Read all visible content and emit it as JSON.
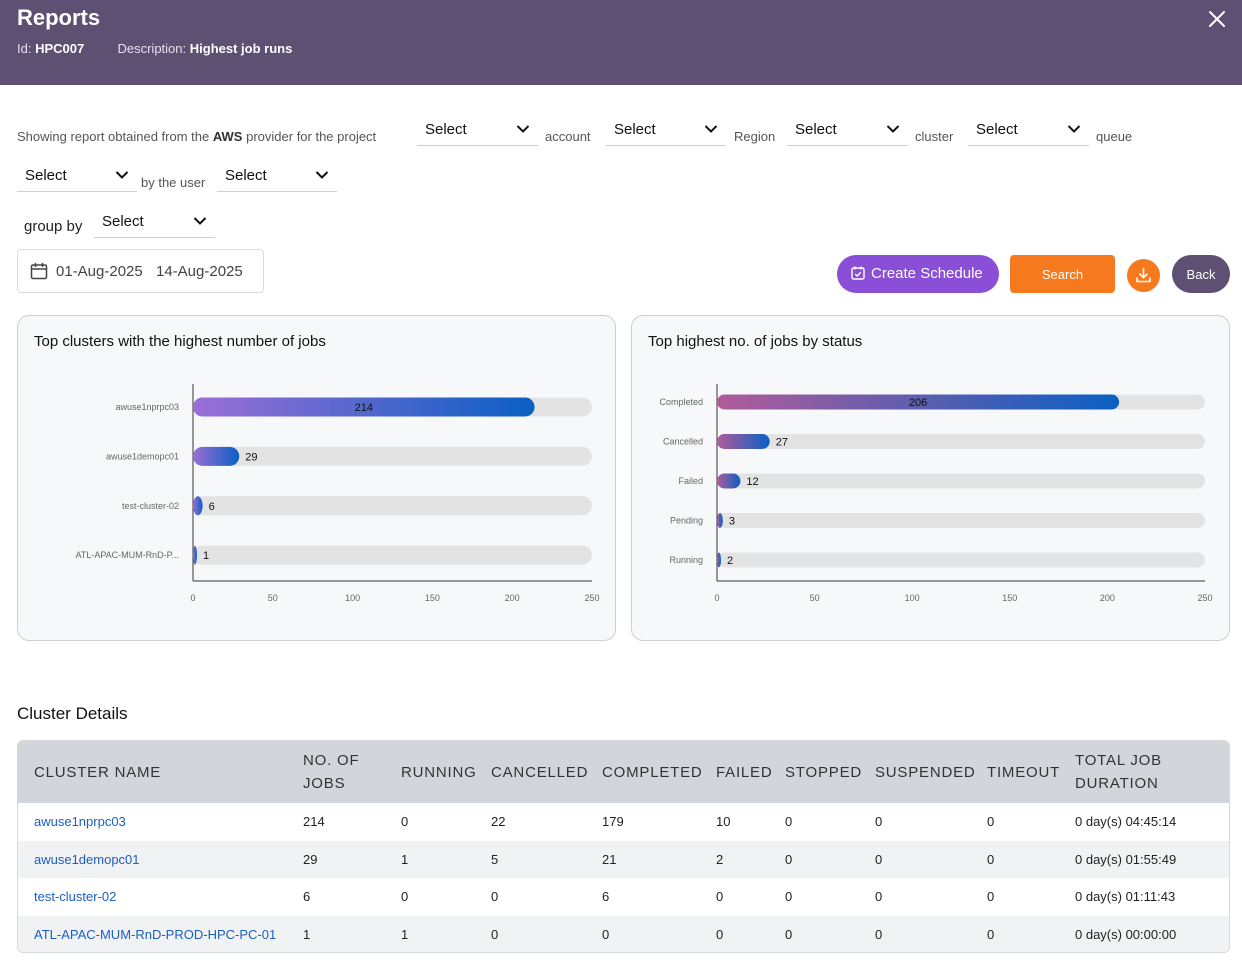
{
  "header": {
    "title": "Reports",
    "id_label": "Id:",
    "id_value": "HPC007",
    "desc_label": "Description:",
    "desc_value": "Highest job runs"
  },
  "filters": {
    "intro_pre": "Showing report obtained from the",
    "provider": "AWS",
    "intro_post": "provider for the project",
    "account_label": "account",
    "region_label": "Region",
    "cluster_label": "cluster",
    "queue_label": "queue",
    "user_label": "by the user",
    "groupby_label": "group by",
    "project_value": "Select",
    "account_value": "Select",
    "region_value": "Select",
    "cluster_value": "Select",
    "queue_value": "Select",
    "user_value": "Select",
    "groupby_value": "Select"
  },
  "date_range": {
    "start": "01-Aug-2025",
    "end": "14-Aug-2025"
  },
  "actions": {
    "create_schedule": "Create Schedule",
    "search": "Search",
    "back": "Back"
  },
  "colors": {
    "header_bg": "#5e5072",
    "accent_purple": "#8a4fd6",
    "accent_orange": "#f7791e",
    "link_blue": "#1b5fc1"
  },
  "chart_data": [
    {
      "type": "bar",
      "orientation": "horizontal",
      "title": "Top clusters with the highest number of jobs",
      "categories": [
        "awuse1nprpc03",
        "awuse1demopc01",
        "test-cluster-02",
        "ATL-APAC-MUM-RnD-P..."
      ],
      "values": [
        214,
        29,
        6,
        1
      ],
      "xlim": [
        0,
        250
      ],
      "xticks": [
        0,
        50,
        100,
        150,
        200,
        250
      ],
      "gradient": [
        "#9b6fd6",
        "#0a5fc4"
      ]
    },
    {
      "type": "bar",
      "orientation": "horizontal",
      "title": "Top highest no. of jobs by status",
      "categories": [
        "Completed",
        "Cancelled",
        "Failed",
        "Pending",
        "Running"
      ],
      "values": [
        206,
        27,
        12,
        3,
        2
      ],
      "xlim": [
        0,
        250
      ],
      "xticks": [
        0,
        50,
        100,
        150,
        200,
        250
      ],
      "gradient": [
        "#b05c9a",
        "#0a5fc4"
      ]
    }
  ],
  "cluster_details": {
    "title": "Cluster Details",
    "columns": [
      "CLUSTER NAME",
      "NO. OF JOBS",
      "RUNNING",
      "CANCELLED",
      "COMPLETED",
      "FAILED",
      "STOPPED",
      "SUSPENDED",
      "TIMEOUT",
      "TOTAL JOB DURATION"
    ],
    "rows": [
      [
        "awuse1nprpc03",
        "214",
        "0",
        "22",
        "179",
        "10",
        "0",
        "0",
        "0",
        "0 day(s) 04:45:14"
      ],
      [
        "awuse1demopc01",
        "29",
        "1",
        "5",
        "21",
        "2",
        "0",
        "0",
        "0",
        "0 day(s) 01:55:49"
      ],
      [
        "test-cluster-02",
        "6",
        "0",
        "0",
        "6",
        "0",
        "0",
        "0",
        "0",
        "0 day(s) 01:11:43"
      ],
      [
        "ATL-APAC-MUM-RnD-PROD-HPC-PC-01",
        "1",
        "1",
        "0",
        "0",
        "0",
        "0",
        "0",
        "0",
        "0 day(s) 00:00:00"
      ]
    ]
  }
}
